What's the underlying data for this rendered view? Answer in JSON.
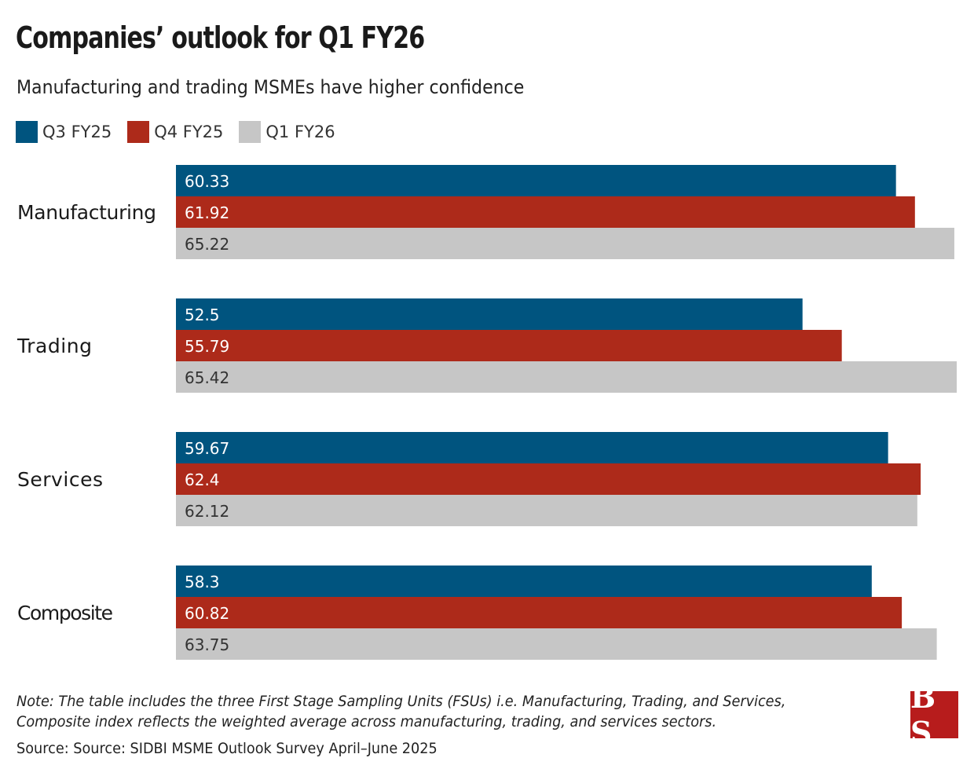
{
  "title": "Companies’ outlook for Q1 FY26",
  "subtitle": "Manufacturing and trading MSMEs have higher confidence",
  "note_lines": [
    "Note: The table includes the three First Stage Sampling Units (FSUs) i.e. Manufacturing, Trading, and Services,",
    "Composite index reflects the weighted average across manufacturing, trading, and services sectors."
  ],
  "source": "Source: Source: SIDBI MSME Outlook Survey April–June 2025",
  "logo": "BS",
  "chart_data": {
    "type": "bar",
    "orientation": "horizontal",
    "title": "Companies’ outlook for Q1 FY26",
    "categories": [
      "Manufacturing",
      "Trading",
      "Services",
      "Composite"
    ],
    "series": [
      {
        "name": "Q3 FY25",
        "color": "#00547f",
        "label_color": "#ffffff",
        "values": [
          60.33,
          52.5,
          59.67,
          58.3
        ]
      },
      {
        "name": "Q4 FY25",
        "color": "#ad2a1a",
        "label_color": "#ffffff",
        "values": [
          61.92,
          55.79,
          62.4,
          60.82
        ]
      },
      {
        "name": "Q1 FY26",
        "color": "#c6c6c6",
        "label_color": "#333333",
        "values": [
          65.22,
          65.42,
          62.12,
          63.75
        ]
      }
    ],
    "xlim": [
      0,
      65.42
    ],
    "grid": false,
    "legend": "top-left"
  }
}
